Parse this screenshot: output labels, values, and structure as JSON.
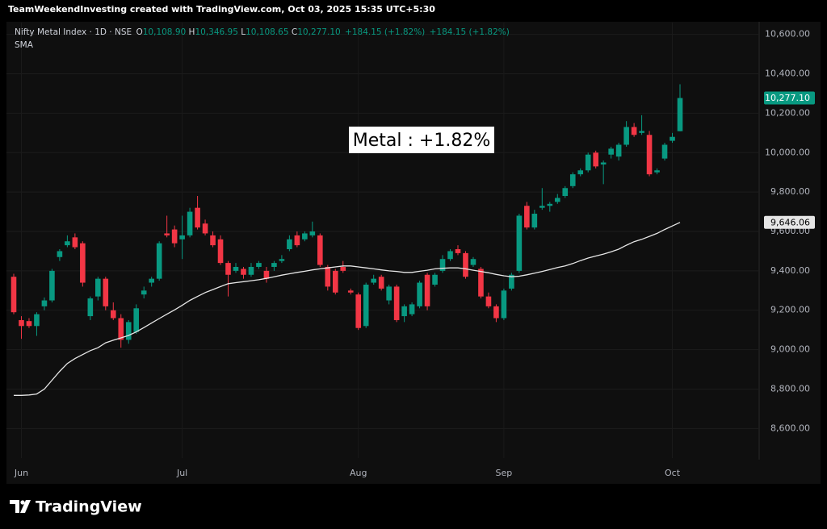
{
  "header": {
    "text": "TeamWeekendInvesting created with TradingView.com, Oct 03, 2025 15:35 UTC+5:30"
  },
  "brand": "TradingView",
  "chart_data": {
    "type": "candlestick",
    "annotation": "Metal : +1.82%",
    "legend_line": {
      "open_prefix": "O",
      "open": "10,108.90",
      "high_prefix": "H",
      "high": "10,346.95",
      "low_prefix": "L",
      "low": "10,108.65",
      "close_prefix": "C",
      "close": "10,277.10",
      "change": "+184.15 (+1.82%)",
      "change_2": "+184.15 (+1.82%)"
    },
    "categories": [
      null,
      "Jun",
      null,
      null,
      null,
      null,
      null,
      null,
      null,
      null,
      null,
      null,
      null,
      null,
      null,
      null,
      null,
      null,
      null,
      null,
      null,
      null,
      "Jul",
      null,
      null,
      null,
      null,
      null,
      null,
      null,
      null,
      null,
      null,
      null,
      null,
      null,
      null,
      null,
      null,
      null,
      null,
      null,
      null,
      null,
      null,
      "Aug",
      null,
      null,
      null,
      null,
      null,
      null,
      null,
      null,
      null,
      null,
      null,
      null,
      null,
      null,
      null,
      null,
      null,
      null,
      "Sep",
      null,
      null,
      null,
      null,
      null,
      null,
      null,
      null,
      null,
      null,
      null,
      null,
      null,
      null,
      null,
      null,
      null,
      null,
      null,
      null,
      null,
      "Oct",
      null
    ],
    "ylim": [
      8450,
      10660
    ],
    "yticks": [
      {
        "value": 8600,
        "label": "8,600.00"
      },
      {
        "value": 8800,
        "label": "8,800.00"
      },
      {
        "value": 9000,
        "label": "9,000.00"
      },
      {
        "value": 9200,
        "label": "9,200.00"
      },
      {
        "value": 9400,
        "label": "9,400.00"
      },
      {
        "value": 9600,
        "label": "9,600.00"
      },
      {
        "value": 9800,
        "label": "9,800.00"
      },
      {
        "value": 10000,
        "label": "10,000.00"
      },
      {
        "value": 10200,
        "label": "10,200.00"
      },
      {
        "value": 10400,
        "label": "10,400.00"
      },
      {
        "value": 10600,
        "label": "10,600.00"
      }
    ],
    "grid": true,
    "series": [
      {
        "name": "Nifty Metal Index · 1D · NSE",
        "up_color": "#089981",
        "down_color": "#f23645",
        "last_label": "10,277.10",
        "open": [
          9370,
          9150,
          9145,
          9120,
          9220,
          9250,
          9470,
          9530,
          9570,
          9540,
          9170,
          9270,
          9360,
          9200,
          9160,
          9050,
          9090,
          9280,
          9340,
          9360,
          9590,
          9610,
          9560,
          9580,
          9720,
          9640,
          9580,
          9560,
          9440,
          9400,
          9410,
          9380,
          9420,
          9400,
          9420,
          9450,
          9510,
          9580,
          9560,
          9580,
          9580,
          9420,
          9400,
          9420,
          9300,
          9280,
          9120,
          9340,
          9370,
          9250,
          9320,
          9170,
          9180,
          9220,
          9380,
          9330,
          9400,
          9460,
          9510,
          9490,
          9430,
          9410,
          9270,
          9220,
          9160,
          9310,
          9400,
          9730,
          9620,
          9720,
          9730,
          9750,
          9780,
          9830,
          9890,
          9910,
          10000,
          9940,
          9990,
          9980,
          10040,
          10130,
          10100,
          10090,
          9900,
          9970,
          10060,
          10108.9
        ],
        "high": [
          9385,
          9170,
          9160,
          9190,
          9265,
          9410,
          9510,
          9580,
          9590,
          9550,
          9270,
          9370,
          9370,
          9240,
          9180,
          9150,
          9230,
          9320,
          9370,
          9550,
          9680,
          9630,
          9680,
          9720,
          9780,
          9660,
          9600,
          9580,
          9450,
          9440,
          9420,
          9440,
          9450,
          9420,
          9450,
          9480,
          9580,
          9600,
          9600,
          9650,
          9590,
          9430,
          9410,
          9450,
          9310,
          9290,
          9340,
          9380,
          9380,
          9330,
          9330,
          9230,
          9240,
          9350,
          9390,
          9390,
          9480,
          9510,
          9530,
          9500,
          9470,
          9420,
          9290,
          9230,
          9310,
          9390,
          9690,
          9750,
          9710,
          9820,
          9750,
          9790,
          9830,
          9900,
          9920,
          10000,
          10010,
          9960,
          10030,
          10050,
          10160,
          10150,
          10190,
          10110,
          9920,
          10050,
          10100,
          10346.95
        ],
        "low": [
          9180,
          9055,
          9110,
          9070,
          9200,
          9240,
          9450,
          9520,
          9510,
          9320,
          9150,
          9250,
          9200,
          9150,
          9010,
          9030,
          9080,
          9260,
          9320,
          9350,
          9570,
          9520,
          9460,
          9570,
          9610,
          9580,
          9520,
          9430,
          9270,
          9390,
          9360,
          9370,
          9410,
          9340,
          9400,
          9440,
          9500,
          9520,
          9550,
          9570,
          9420,
          9300,
          9280,
          9390,
          9280,
          9100,
          9110,
          9330,
          9300,
          9230,
          9140,
          9140,
          9170,
          9210,
          9200,
          9320,
          9390,
          9450,
          9480,
          9360,
          9420,
          9260,
          9210,
          9140,
          9150,
          9300,
          9390,
          9610,
          9610,
          9710,
          9700,
          9740,
          9770,
          9820,
          9880,
          9900,
          9920,
          9840,
          9970,
          9960,
          10030,
          10080,
          10090,
          9880,
          9890,
          9960,
          10050,
          10108.65
        ],
        "close": [
          9190,
          9120,
          9120,
          9180,
          9250,
          9400,
          9500,
          9550,
          9520,
          9340,
          9260,
          9360,
          9220,
          9160,
          9050,
          9140,
          9210,
          9300,
          9360,
          9540,
          9580,
          9540,
          9580,
          9700,
          9620,
          9590,
          9530,
          9440,
          9380,
          9420,
          9380,
          9420,
          9440,
          9360,
          9440,
          9460,
          9560,
          9530,
          9590,
          9600,
          9430,
          9320,
          9290,
          9400,
          9290,
          9110,
          9330,
          9360,
          9310,
          9320,
          9150,
          9220,
          9230,
          9340,
          9220,
          9380,
          9460,
          9500,
          9490,
          9370,
          9460,
          9270,
          9220,
          9160,
          9300,
          9380,
          9680,
          9620,
          9690,
          9730,
          9740,
          9770,
          9820,
          9890,
          9910,
          9990,
          9930,
          9950,
          10020,
          10040,
          10130,
          10090,
          10110,
          9890,
          9910,
          10040,
          10080,
          10277.1
        ]
      },
      {
        "name": "SMA",
        "color": "#e6e6e6",
        "last_label": "9,646.06",
        "values": [
          8768,
          8768,
          8770,
          8775,
          8800,
          8845,
          8890,
          8930,
          8955,
          8975,
          8995,
          9010,
          9035,
          9048,
          9060,
          9072,
          9090,
          9112,
          9135,
          9158,
          9180,
          9202,
          9225,
          9250,
          9270,
          9290,
          9305,
          9320,
          9335,
          9340,
          9345,
          9350,
          9355,
          9362,
          9370,
          9378,
          9385,
          9392,
          9398,
          9405,
          9410,
          9415,
          9420,
          9425,
          9425,
          9420,
          9415,
          9410,
          9405,
          9400,
          9397,
          9392,
          9392,
          9398,
          9403,
          9410,
          9413,
          9415,
          9415,
          9410,
          9403,
          9397,
          9390,
          9382,
          9375,
          9370,
          9373,
          9380,
          9388,
          9397,
          9407,
          9417,
          9425,
          9437,
          9452,
          9465,
          9475,
          9485,
          9497,
          9510,
          9530,
          9548,
          9560,
          9575,
          9590,
          9610,
          9628,
          9646.06
        ]
      }
    ]
  }
}
